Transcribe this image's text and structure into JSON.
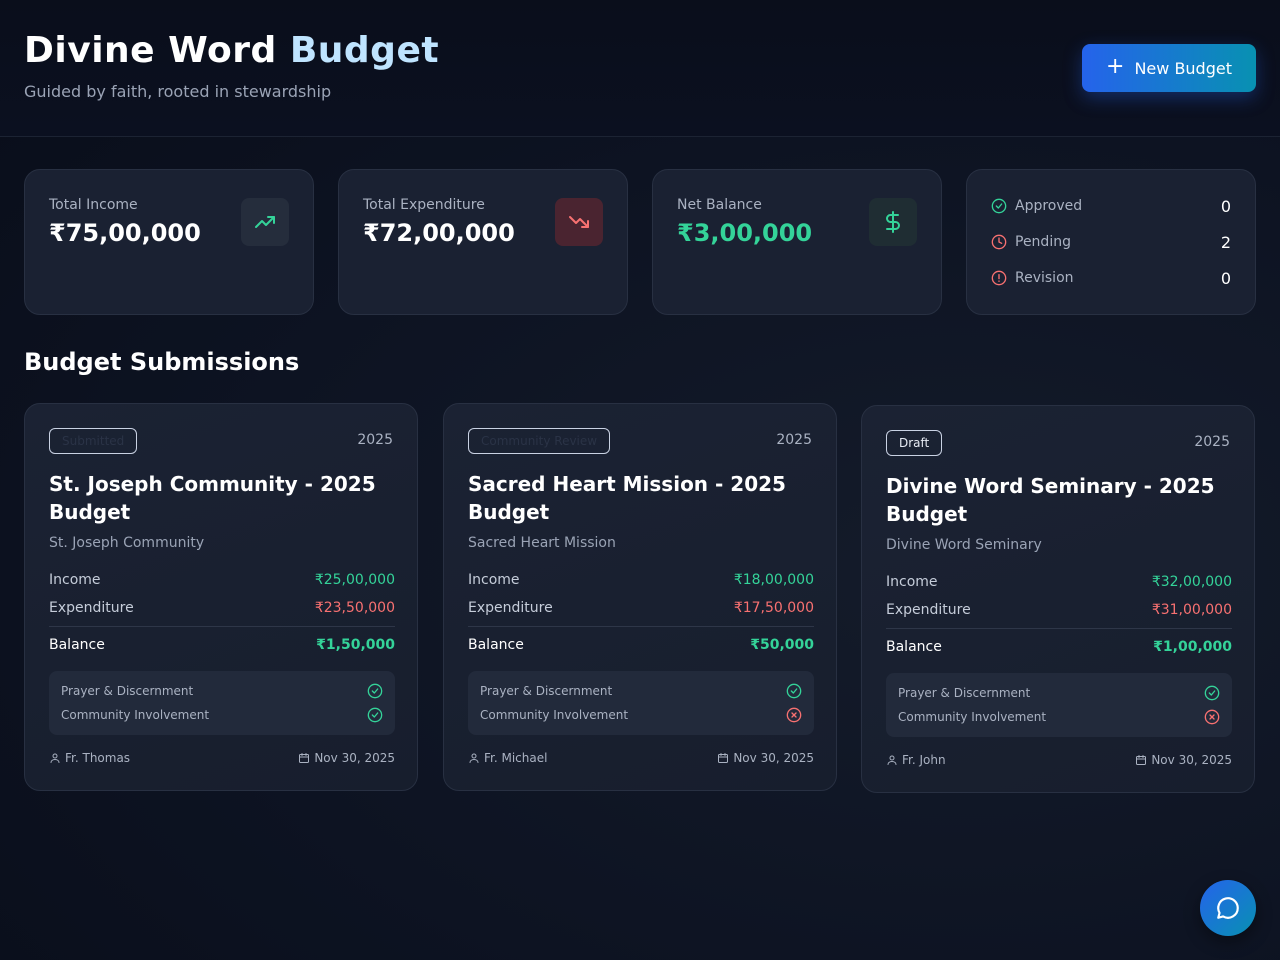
{
  "header": {
    "title_main": "Divine Word",
    "title_accent": "Budget",
    "subtitle": "Guided by faith, rooted in stewardship",
    "new_button_label": "New Budget"
  },
  "stats": {
    "income": {
      "label": "Total Income",
      "value": "₹75,00,000",
      "icon": "trending-up-icon"
    },
    "expenditure": {
      "label": "Total Expenditure",
      "value": "₹72,00,000",
      "icon": "trending-down-icon"
    },
    "balance": {
      "label": "Net Balance",
      "value": "₹3,00,000",
      "icon": "dollar-icon"
    },
    "status": {
      "approved": {
        "label": "Approved",
        "count": "0"
      },
      "pending": {
        "label": "Pending",
        "count": "2"
      },
      "revision": {
        "label": "Revision",
        "count": "0"
      }
    }
  },
  "section_title": "Budget Submissions",
  "budgets": [
    {
      "status": "Submitted",
      "year": "2025",
      "title": "St. Joseph Community - 2025 Budget",
      "community": "St. Joseph Community",
      "income_label": "Income",
      "income": "₹25,00,000",
      "expenditure_label": "Expenditure",
      "expenditure": "₹23,50,000",
      "balance_label": "Balance",
      "balance": "₹1,50,000",
      "checks": [
        {
          "label": "Prayer & Discernment",
          "done": true
        },
        {
          "label": "Community Involvement",
          "done": true
        }
      ],
      "author": "Fr. Thomas",
      "date": "Nov 30, 2025"
    },
    {
      "status": "Community Review",
      "year": "2025",
      "title": "Sacred Heart Mission - 2025 Budget",
      "community": "Sacred Heart Mission",
      "income_label": "Income",
      "income": "₹18,00,000",
      "expenditure_label": "Expenditure",
      "expenditure": "₹17,50,000",
      "balance_label": "Balance",
      "balance": "₹50,000",
      "checks": [
        {
          "label": "Prayer & Discernment",
          "done": true
        },
        {
          "label": "Community Involvement",
          "done": false
        }
      ],
      "author": "Fr. Michael",
      "date": "Nov 30, 2025"
    },
    {
      "status": "Draft",
      "year": "2025",
      "title": "Divine Word Seminary - 2025 Budget",
      "community": "Divine Word Seminary",
      "income_label": "Income",
      "income": "₹32,00,000",
      "expenditure_label": "Expenditure",
      "expenditure": "₹31,00,000",
      "balance_label": "Balance",
      "balance": "₹1,00,000",
      "checks": [
        {
          "label": "Prayer & Discernment",
          "done": true
        },
        {
          "label": "Community Involvement",
          "done": false
        }
      ],
      "author": "Fr. John",
      "date": "Nov 30, 2025"
    }
  ],
  "colors": {
    "accent_start": "#2563eb",
    "accent_end": "#0891b2",
    "income_green": "#34d399",
    "expense_red": "#f87171"
  },
  "chat_icon": "chat-bubble-icon"
}
